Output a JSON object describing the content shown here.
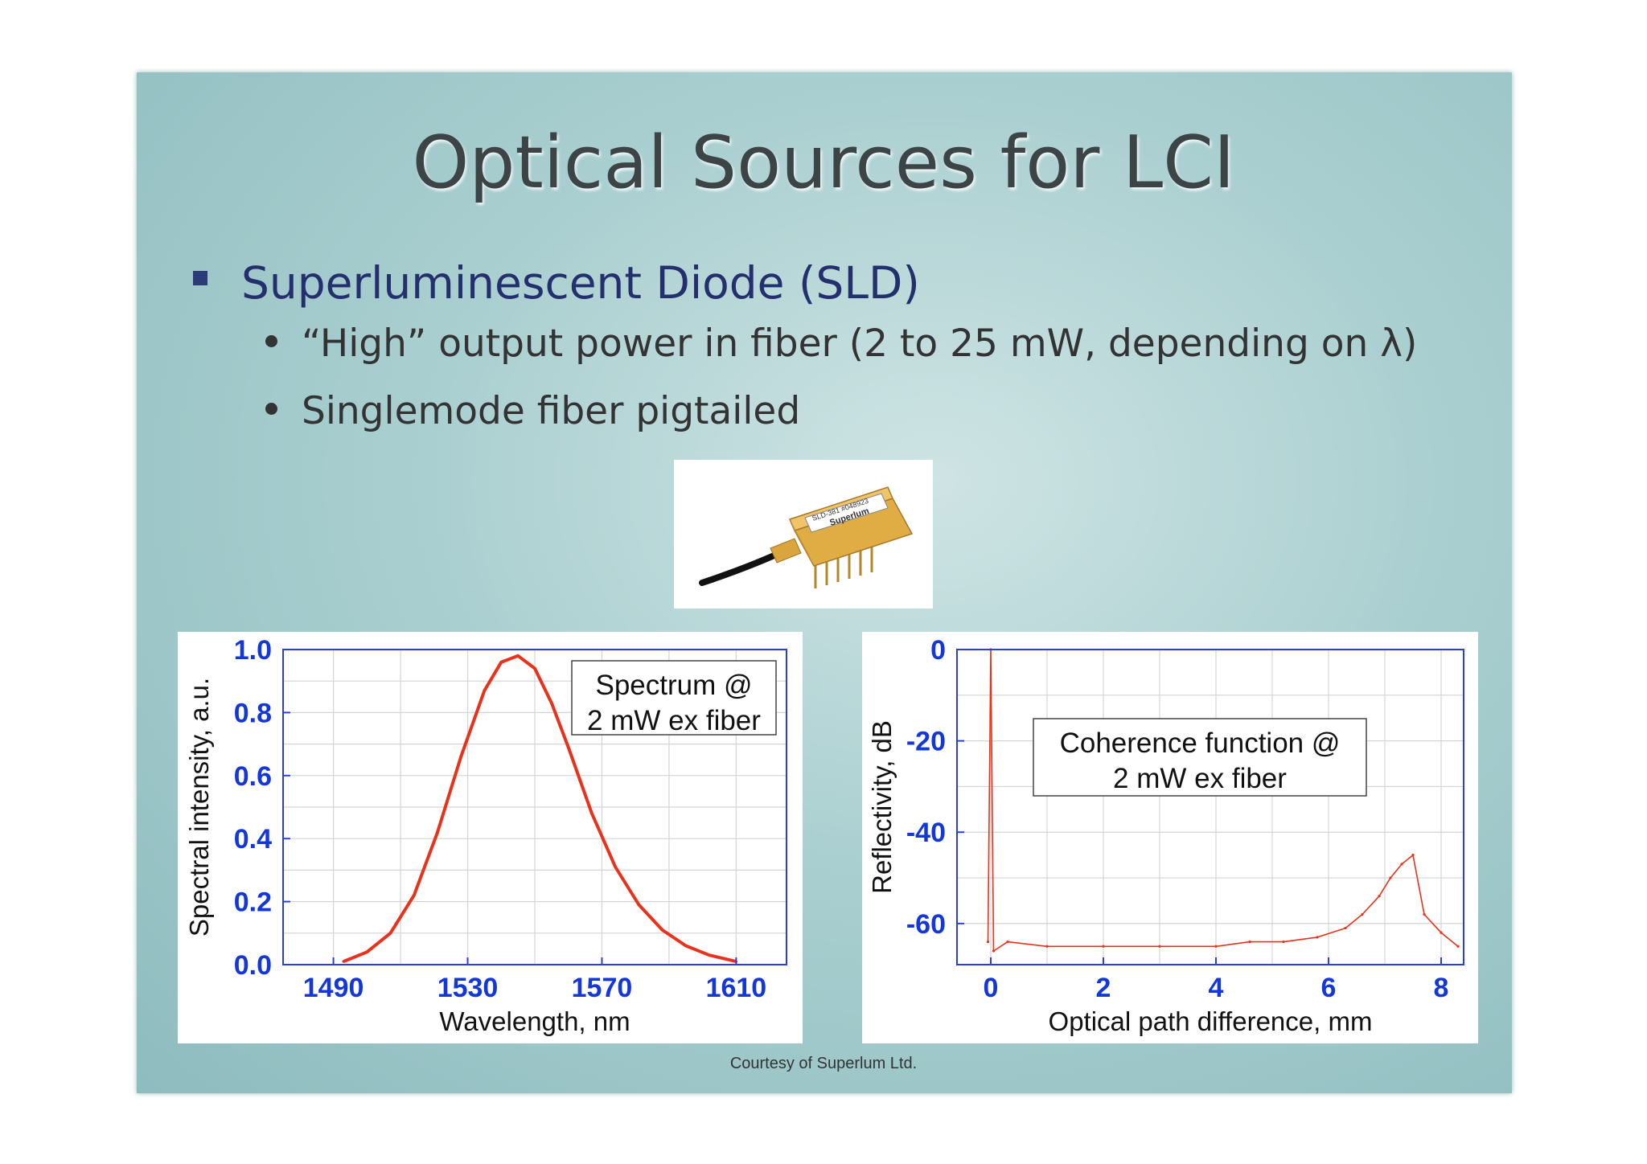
{
  "slide": {
    "title": "Optical Sources for LCI",
    "bullet": "Superluminescent Diode (SLD)",
    "sub_bullets": [
      "“High” output power in fiber (2 to 25 mW, depending on λ)",
      "Singlemode fiber pigtailed"
    ],
    "photo_labels": {
      "model": "SLD-381 #048923",
      "brand": "Superlum"
    },
    "credit": "Courtesy of Superlum Ltd."
  },
  "chart_data": [
    {
      "type": "line",
      "title": "",
      "annotation": [
        "Spectrum @",
        "2 mW ex fiber"
      ],
      "xlabel": "Wavelength, nm",
      "ylabel": "Spectral intensity, a.u.",
      "xlim": [
        1475,
        1625
      ],
      "ylim": [
        0,
        1.0
      ],
      "xticks": [
        1490,
        1530,
        1570,
        1610
      ],
      "yticks": [
        0.0,
        0.2,
        0.4,
        0.6,
        0.8,
        1.0
      ],
      "ytick_labels": [
        "0.0",
        "0.2",
        "0.4",
        "0.6",
        "0.8",
        "1.0"
      ],
      "grid": true,
      "series": [
        {
          "color": "#e8321c",
          "x": [
            1493,
            1500,
            1507,
            1514,
            1521,
            1528,
            1535,
            1540,
            1545,
            1550,
            1555,
            1560,
            1567,
            1574,
            1581,
            1588,
            1595,
            1602,
            1610
          ],
          "y": [
            0.01,
            0.04,
            0.1,
            0.22,
            0.42,
            0.66,
            0.87,
            0.96,
            0.98,
            0.94,
            0.83,
            0.69,
            0.48,
            0.31,
            0.19,
            0.11,
            0.06,
            0.03,
            0.01
          ]
        }
      ]
    },
    {
      "type": "line",
      "title": "",
      "annotation": [
        "Coherence function @",
        "2 mW ex fiber"
      ],
      "xlabel": "Optical path difference, mm",
      "ylabel": "Reflectivity, dB",
      "xlim": [
        -0.6,
        8.4
      ],
      "ylim": [
        -69,
        0
      ],
      "xticks": [
        0,
        2,
        4,
        6,
        8
      ],
      "yticks": [
        0,
        -20,
        -40,
        -60
      ],
      "grid": true,
      "series": [
        {
          "color": "#e8321c",
          "x": [
            -0.05,
            0,
            0.05,
            0.3,
            1,
            2,
            3,
            4,
            4.6,
            5.2,
            5.8,
            6.3,
            6.6,
            6.9,
            7.1,
            7.3,
            7.5,
            7.7,
            8,
            8.3
          ],
          "y": [
            -64,
            0,
            -66,
            -64,
            -65,
            -65,
            -65,
            -65,
            -64,
            -64,
            -63,
            -61,
            -58,
            -54,
            -50,
            -47,
            -45,
            -58,
            -62,
            -65
          ]
        }
      ]
    }
  ]
}
